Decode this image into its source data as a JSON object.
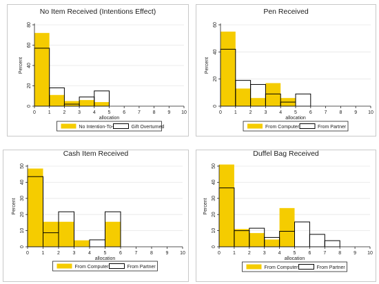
{
  "chart_data": [
    {
      "type": "bar",
      "title": "No Item Received (Intentions Effect)",
      "xlabel": "allocation",
      "ylabel": "Percent",
      "xlim": [
        0,
        10
      ],
      "ylim": [
        0,
        80
      ],
      "x_ticks": [
        0,
        1,
        2,
        3,
        4,
        5,
        6,
        7,
        8,
        9,
        10
      ],
      "y_ticks": [
        0,
        20,
        40,
        60,
        80
      ],
      "bin_width": 1,
      "legend_position": "bottom",
      "series": [
        {
          "name": "No Intention-To-Give",
          "style": "filled",
          "color": "#f5cc00",
          "bins": [
            0,
            1,
            2,
            3,
            4
          ],
          "values": [
            72,
            11,
            5,
            6,
            4
          ]
        },
        {
          "name": "Gift Overturned",
          "style": "outline",
          "color": "#000000",
          "bins": [
            0,
            1,
            2,
            3,
            4
          ],
          "values": [
            57,
            18,
            2,
            9,
            15
          ]
        }
      ]
    },
    {
      "type": "bar",
      "title": "Pen Received",
      "xlabel": "allocation",
      "ylabel": "Percent",
      "xlim": [
        0,
        10
      ],
      "ylim": [
        0,
        60
      ],
      "x_ticks": [
        0,
        1,
        2,
        3,
        4,
        5,
        6,
        7,
        8,
        9,
        10
      ],
      "y_ticks": [
        0,
        20,
        40,
        60
      ],
      "bin_width": 1,
      "legend_position": "bottom",
      "series": [
        {
          "name": "From Computer",
          "style": "filled",
          "color": "#f5cc00",
          "bins": [
            0,
            1,
            2,
            3,
            4
          ],
          "values": [
            55,
            13,
            6,
            17,
            6
          ]
        },
        {
          "name": "From Partner",
          "style": "outline",
          "color": "#000000",
          "bins": [
            0,
            1,
            2,
            3,
            4,
            5
          ],
          "values": [
            42,
            19,
            16,
            9,
            3,
            9
          ]
        }
      ]
    },
    {
      "type": "bar",
      "title": "Cash Item Received",
      "xlabel": "allocation",
      "ylabel": "Percent",
      "xlim": [
        0,
        10
      ],
      "ylim": [
        0,
        50
      ],
      "x_ticks": [
        0,
        1,
        2,
        3,
        4,
        5,
        6,
        7,
        8,
        9,
        10
      ],
      "y_ticks": [
        0,
        10,
        20,
        30,
        40,
        50
      ],
      "bin_width": 1,
      "legend_position": "bottom",
      "series": [
        {
          "name": "From Computer",
          "style": "filled",
          "color": "#f5cc00",
          "bins": [
            0,
            1,
            2,
            3,
            5
          ],
          "values": [
            48.5,
            15.5,
            15.5,
            4,
            15.5
          ]
        },
        {
          "name": "From Partner",
          "style": "outline",
          "color": "#000000",
          "bins": [
            0,
            1,
            2,
            4,
            5
          ],
          "values": [
            43.5,
            8.7,
            21.7,
            4.3,
            21.7
          ]
        }
      ]
    },
    {
      "type": "bar",
      "title": "Duffel Bag Received",
      "xlabel": "allocation",
      "ylabel": "Percent",
      "xlim": [
        0,
        10
      ],
      "ylim": [
        0,
        50
      ],
      "x_ticks": [
        0,
        1,
        2,
        3,
        4,
        5,
        6,
        7,
        8,
        9,
        10
      ],
      "y_ticks": [
        0,
        10,
        20,
        30,
        40,
        50
      ],
      "bin_width": 1,
      "legend_position": "bottom",
      "series": [
        {
          "name": "From Computer",
          "style": "filled",
          "color": "#f5cc00",
          "bins": [
            0,
            1,
            2,
            3,
            4
          ],
          "values": [
            51,
            11,
            8.5,
            4.5,
            24
          ]
        },
        {
          "name": "From Partner",
          "style": "outline",
          "color": "#000000",
          "bins": [
            0,
            1,
            2,
            3,
            4,
            5,
            6,
            7
          ],
          "values": [
            36.5,
            10,
            11.5,
            5.8,
            9.6,
            15.4,
            7.7,
            3.8
          ]
        }
      ]
    }
  ]
}
